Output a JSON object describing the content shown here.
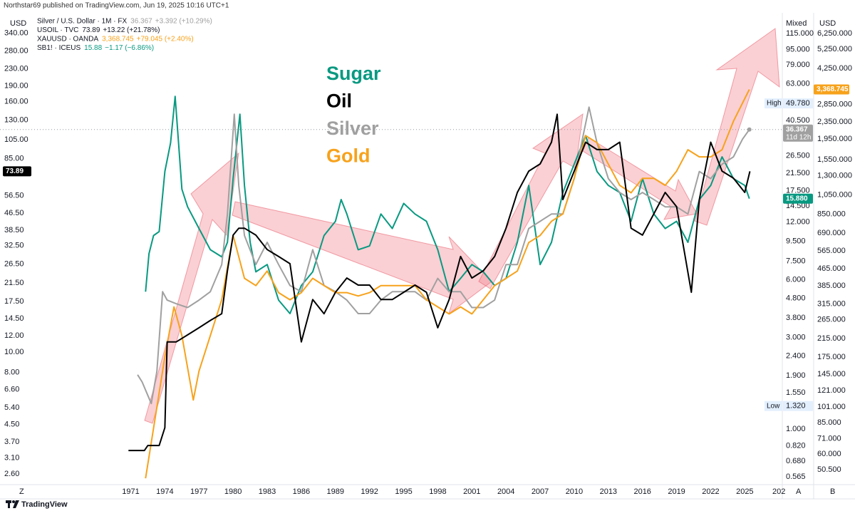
{
  "chart_data": {
    "type": "line",
    "publisher": "Northstar69 published on TradingView.com, Jun 19, 2025 10:16 UTC+1",
    "log_scale": true,
    "left_axis_title": "USD",
    "right_axis_title": "Mixed",
    "right2_axis_title": "USD",
    "annotations": [
      {
        "text": "Sugar",
        "color": "#089981"
      },
      {
        "text": "Oil",
        "color": "#000000"
      },
      {
        "text": "Silver",
        "color": "#a0a0a0"
      },
      {
        "text": "Gold",
        "color": "#f7a21b"
      }
    ],
    "xlim": [
      1959.5,
      2028.3
    ],
    "xticks": [
      1971,
      1974,
      1977,
      1980,
      1983,
      1986,
      1989,
      1992,
      1995,
      1998,
      2001,
      2004,
      2007,
      2010,
      2013,
      2016,
      2019,
      2022,
      2025,
      {
        "value": 2028,
        "label": "202"
      }
    ],
    "ylim": [
      2.31,
      420
    ],
    "yticks": [
      {
        "value": 340,
        "label": "340.00"
      },
      {
        "value": 280,
        "label": "280.00"
      },
      {
        "value": 230,
        "label": "230.00"
      },
      {
        "value": 190,
        "label": "190.00"
      },
      {
        "value": 160,
        "label": "160.00"
      },
      {
        "value": 130,
        "label": "130.00"
      },
      {
        "value": 105,
        "label": "105.00"
      },
      {
        "value": 85,
        "label": "85.00"
      },
      {
        "value": 56.5,
        "label": "56.50"
      },
      {
        "value": 46.5,
        "label": "46.50"
      },
      {
        "value": 38.5,
        "label": "38.50"
      },
      {
        "value": 32.5,
        "label": "32.50"
      },
      {
        "value": 26.5,
        "label": "26.50"
      },
      {
        "value": 21.5,
        "label": "21.50"
      },
      {
        "value": 17.5,
        "label": "17.50"
      },
      {
        "value": 14.5,
        "label": "14.50"
      },
      {
        "value": 12,
        "label": "12.00"
      },
      {
        "value": 10,
        "label": "10.00"
      },
      {
        "value": 8,
        "label": "8.00"
      },
      {
        "value": 6.6,
        "label": "6.60"
      },
      {
        "value": 5.4,
        "label": "5.40"
      },
      {
        "value": 4.5,
        "label": "4.50"
      },
      {
        "value": 3.7,
        "label": "3.70"
      },
      {
        "value": 3.1,
        "label": "3.10"
      },
      {
        "value": 2.6,
        "label": "2.60"
      }
    ],
    "y2lim": [
      0.514,
      145
    ],
    "y2ticks": [
      {
        "value": 115,
        "label": "115.000"
      },
      {
        "value": 95,
        "label": "95.000"
      },
      {
        "value": 79,
        "label": "79.000"
      },
      {
        "value": 63,
        "label": "63.000"
      },
      {
        "value": 40.5,
        "label": "40.500"
      },
      {
        "value": 26.5,
        "label": "26.500"
      },
      {
        "value": 21.5,
        "label": "21.500"
      },
      {
        "value": 17.5,
        "label": "17.500"
      },
      {
        "value": 14.5,
        "label": "14.500"
      },
      {
        "value": 12,
        "label": "12.000"
      },
      {
        "value": 9.5,
        "label": "9.500"
      },
      {
        "value": 7.5,
        "label": "7.500"
      },
      {
        "value": 6,
        "label": "6.000"
      },
      {
        "value": 4.8,
        "label": "4.800"
      },
      {
        "value": 3.8,
        "label": "3.800"
      },
      {
        "value": 3,
        "label": "3.000"
      },
      {
        "value": 2.4,
        "label": "2.400"
      },
      {
        "value": 1.9,
        "label": "1.900"
      },
      {
        "value": 1.55,
        "label": "1.550"
      },
      {
        "value": 1,
        "label": "1.000"
      },
      {
        "value": 0.82,
        "label": "0.820"
      },
      {
        "value": 0.68,
        "label": "0.680"
      },
      {
        "value": 0.565,
        "label": "0.565"
      }
    ],
    "y3lim": [
      42.8,
      7730
    ],
    "y3ticks": [
      {
        "value": 6250,
        "label": "6,250.000"
      },
      {
        "value": 5250,
        "label": "5,250.000"
      },
      {
        "value": 4250,
        "label": "4,250.000"
      },
      {
        "value": 2850,
        "label": "2,850.000"
      },
      {
        "value": 2350,
        "label": "2,350.000"
      },
      {
        "value": 1950,
        "label": "1,950.000"
      },
      {
        "value": 1550,
        "label": "1,550.000"
      },
      {
        "value": 1300,
        "label": "1,300.000"
      },
      {
        "value": 1050,
        "label": "1,050.000"
      },
      {
        "value": 850,
        "label": "850.000"
      },
      {
        "value": 690,
        "label": "690.000"
      },
      {
        "value": 565,
        "label": "565.000"
      },
      {
        "value": 465,
        "label": "465.000"
      },
      {
        "value": 385,
        "label": "385.000"
      },
      {
        "value": 315,
        "label": "315.000"
      },
      {
        "value": 265,
        "label": "265.000"
      },
      {
        "value": 215,
        "label": "215.000"
      },
      {
        "value": 175,
        "label": "175.000"
      },
      {
        "value": 145,
        "label": "145.000"
      },
      {
        "value": 121,
        "label": "121.000"
      },
      {
        "value": 101,
        "label": "101.000"
      },
      {
        "value": 85,
        "label": "85.000"
      },
      {
        "value": 71,
        "label": "71.000"
      },
      {
        "value": 60,
        "label": "60.000"
      },
      {
        "value": 50.5,
        "label": "50.500"
      }
    ],
    "high": {
      "label": "High",
      "value": 49.78,
      "value_label": "49.780"
    },
    "low": {
      "label": "Low",
      "value": 1.32,
      "value_label": "1.320"
    },
    "series": [
      {
        "name": "Silver / U.S. Dollar · 1M · FX",
        "color": "#a0a0a0",
        "axis": "y2",
        "legend_value": "36.367",
        "change": "+3.392 (+10.29%)",
        "price_label": "36.367",
        "countdown": "11d 12h",
        "x": [
          1971.6,
          1972,
          1972.8,
          1973.3,
          1973.8,
          1974.2,
          1975,
          1976,
          1977,
          1978,
          1979,
          1979.5,
          1980.1,
          1980.5,
          1981,
          1982,
          1983,
          1984,
          1985,
          1986,
          1987,
          1988,
          1989,
          1990,
          1991,
          1992,
          1993,
          1994,
          1995,
          1996,
          1997,
          1998,
          1999,
          2000,
          2001,
          2002,
          2003,
          2004,
          2005,
          2006,
          2007,
          2008,
          2009,
          2010,
          2011.3,
          2012,
          2013,
          2014,
          2015,
          2016,
          2017,
          2018,
          2019,
          2020,
          2021,
          2022,
          2023,
          2024,
          2024.8,
          2025.4
        ],
        "values": [
          1.92,
          1.76,
          1.36,
          2.0,
          5.2,
          4.7,
          4.5,
          4.3,
          4.7,
          5.2,
          7.2,
          13.2,
          43.7,
          18.6,
          10.2,
          7.2,
          9.4,
          7.2,
          5.6,
          5.2,
          8.6,
          5.6,
          5.2,
          4.7,
          4.0,
          4.0,
          4.7,
          5.2,
          5.2,
          5.2,
          4.7,
          6.1,
          5.2,
          5.2,
          4.3,
          4.3,
          4.7,
          7.2,
          7.2,
          11.1,
          12.1,
          13.2,
          13.2,
          20.2,
          47.6,
          31.0,
          20.2,
          17.1,
          15.7,
          17.1,
          15.7,
          14.4,
          14.4,
          13.2,
          22.0,
          20.2,
          24.0,
          26.2,
          32.4,
          36.367
        ]
      },
      {
        "name": "USOIL · TVC",
        "color": "#000000",
        "axis": "y",
        "legend_value": "73.89",
        "change": "+13.22 (+21.78%)",
        "price_label": "73.89",
        "x": [
          1970.8,
          1972.2,
          1972.5,
          1973.5,
          1974,
          1974.2,
          1975,
          1976,
          1977,
          1978,
          1979,
          1979.5,
          1980,
          1980.5,
          1981,
          1982,
          1983,
          1984,
          1985,
          1986,
          1987,
          1988,
          1989,
          1990,
          1991,
          1992,
          1993,
          1994,
          1995,
          1996,
          1997,
          1998,
          1999,
          2000,
          2001,
          2002,
          2003,
          2004,
          2005,
          2006,
          2007,
          2008,
          2008.5,
          2009,
          2010,
          2011,
          2012,
          2013,
          2014,
          2015,
          2016,
          2017,
          2018,
          2019,
          2020.3,
          2021,
          2022,
          2023,
          2024,
          2025,
          2025.45
        ],
        "values": [
          3.37,
          3.37,
          3.56,
          3.56,
          4.34,
          11.2,
          11.2,
          12.1,
          13.1,
          14.2,
          15.3,
          24.6,
          36.5,
          39.4,
          39.4,
          36.5,
          31.1,
          28.8,
          26.6,
          11.2,
          17.9,
          15.3,
          19.4,
          22.7,
          21.0,
          21.0,
          17.9,
          17.9,
          19.4,
          21.0,
          19.4,
          13.1,
          17.9,
          28.8,
          22.7,
          24.6,
          28.8,
          39.4,
          58.5,
          74.1,
          80.2,
          102,
          139,
          54.1,
          74.1,
          102,
          94,
          94,
          102,
          39.4,
          36.5,
          46.2,
          58.5,
          50.0,
          19.4,
          54.1,
          102,
          74.1,
          68.5,
          58.5,
          73.89
        ]
      },
      {
        "name": "XAUUSD · OANDA",
        "color": "#f7a21b",
        "axis": "y3",
        "legend_value": "3,368.745",
        "change": "+79.045 (+2.40%)",
        "price_label": "3,368.745",
        "x": [
          1972.3,
          1973,
          1973.5,
          1974,
          1974.8,
          1975.5,
          1976.5,
          1977,
          1978,
          1979,
          1980,
          1981,
          1982,
          1983,
          1984,
          1985,
          1986,
          1987,
          1988,
          1989,
          1990,
          1991,
          1992,
          1993,
          1994,
          1995,
          1996,
          1997,
          1998,
          1999,
          2000,
          2001,
          2002,
          2003,
          2004,
          2005,
          2006,
          2007,
          2008,
          2009,
          2010,
          2011,
          2012,
          2013,
          2014,
          2015,
          2016,
          2017,
          2018,
          2019,
          2020,
          2021,
          2022,
          2023,
          2024,
          2025.4
        ],
        "values": [
          45.9,
          79.8,
          118,
          176,
          305,
          222,
          109,
          150,
          222,
          330,
          671,
          418,
          386,
          453,
          357,
          330,
          357,
          418,
          386,
          357,
          357,
          344,
          357,
          386,
          386,
          386,
          386,
          330,
          305,
          282,
          305,
          282,
          330,
          386,
          418,
          453,
          621,
          671,
          785,
          851,
          1262,
          2023,
          1871,
          1476,
          1167,
          1076,
          1262,
          1262,
          1167,
          1365,
          1730,
          1600,
          1600,
          1730,
          2371,
          3368.745
        ]
      },
      {
        "name": "SB1! · ICEUS",
        "color": "#089981",
        "axis": "y2",
        "legend_value": "15.88",
        "change": "−1.17 (−6.86%)",
        "price_label": "15.880",
        "x": [
          1972.3,
          1972.6,
          1973,
          1973.5,
          1974,
          1974.5,
          1974.9,
          1975.2,
          1975.5,
          1976,
          1977,
          1978,
          1979,
          1979.5,
          1980,
          1980.6,
          1981,
          1981.5,
          1982,
          1983,
          1984,
          1985,
          1986,
          1987,
          1988,
          1989,
          1989.5,
          1990,
          1991,
          1992,
          1993,
          1994,
          1995,
          1996,
          1997,
          1998,
          1999,
          2000,
          2001,
          2002,
          2003,
          2004,
          2005,
          2006,
          2007,
          2008,
          2009,
          2010,
          2011,
          2012,
          2013,
          2014,
          2015,
          2016,
          2017,
          2018,
          2019,
          2020,
          2021,
          2022,
          2023,
          2024,
          2025,
          2025.4
        ],
        "values": [
          5.2,
          8.2,
          10.2,
          10.7,
          22.0,
          31.0,
          54.1,
          31.0,
          17.8,
          14.4,
          11.1,
          8.6,
          7.9,
          9.4,
          20.2,
          43.7,
          18.6,
          9.4,
          6.6,
          7.2,
          4.7,
          4.0,
          5.6,
          6.6,
          10.2,
          12.1,
          15.7,
          13.2,
          8.6,
          9.0,
          13.2,
          11.1,
          15.0,
          13.2,
          12.1,
          8.6,
          5.2,
          6.1,
          7.2,
          6.6,
          5.6,
          6.1,
          9.4,
          18.6,
          7.2,
          9.4,
          17.1,
          24.0,
          33.8,
          22.0,
          18.6,
          17.1,
          12.1,
          20.2,
          13.2,
          11.1,
          12.1,
          9.4,
          15.7,
          18.6,
          26.2,
          20.2,
          18.6,
          15.88
        ]
      }
    ],
    "footer_left": "Z",
    "footer_mid": "A",
    "footer_right": "B",
    "brand": "TradingView"
  }
}
